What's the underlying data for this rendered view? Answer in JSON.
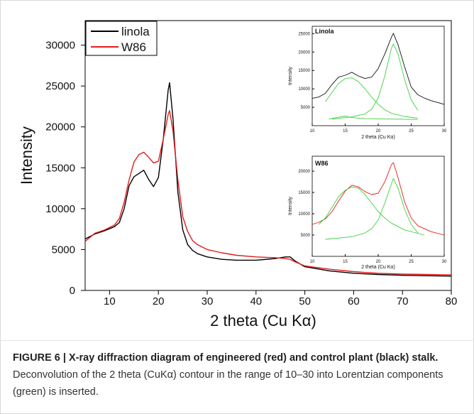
{
  "chart_data": [
    {
      "type": "line",
      "xlabel": "2 theta (Cu Kα)",
      "ylabel": "Intensity",
      "xlim": [
        5,
        80
      ],
      "ylim": [
        0,
        33000
      ],
      "xticks": [
        10,
        20,
        30,
        40,
        50,
        60,
        70,
        80
      ],
      "yticks": [
        0,
        5000,
        10000,
        15000,
        20000,
        25000,
        30000
      ],
      "legend_position": "top-left",
      "grid": false,
      "series": [
        {
          "name": "linola",
          "color": "#000000",
          "points": [
            [
              5,
              6300
            ],
            [
              7,
              6900
            ],
            [
              9,
              7300
            ],
            [
              11,
              7800
            ],
            [
              12,
              8300
            ],
            [
              13,
              10000
            ],
            [
              14,
              12800
            ],
            [
              15,
              13900
            ],
            [
              16,
              14300
            ],
            [
              17,
              14700
            ],
            [
              18,
              13600
            ],
            [
              19,
              12700
            ],
            [
              20,
              13800
            ],
            [
              21,
              18500
            ],
            [
              22,
              24500
            ],
            [
              22.3,
              25400
            ],
            [
              23,
              21000
            ],
            [
              24,
              12000
            ],
            [
              25,
              7400
            ],
            [
              26,
              5600
            ],
            [
              27,
              4900
            ],
            [
              28,
              4500
            ],
            [
              30,
              4100
            ],
            [
              33,
              3800
            ],
            [
              36,
              3700
            ],
            [
              40,
              3700
            ],
            [
              44,
              3900
            ],
            [
              46,
              4100
            ],
            [
              47,
              4100
            ],
            [
              48,
              3600
            ],
            [
              50,
              2900
            ],
            [
              55,
              2400
            ],
            [
              60,
              2100
            ],
            [
              65,
              1950
            ],
            [
              70,
              1850
            ],
            [
              75,
              1800
            ],
            [
              80,
              1750
            ]
          ]
        },
        {
          "name": "W86",
          "color": "#e41a1c",
          "points": [
            [
              5,
              6000
            ],
            [
              7,
              7000
            ],
            [
              9,
              7400
            ],
            [
              11,
              8000
            ],
            [
              12,
              8800
            ],
            [
              13,
              10800
            ],
            [
              14,
              13500
            ],
            [
              15,
              15700
            ],
            [
              16,
              16600
            ],
            [
              17,
              16900
            ],
            [
              18,
              16300
            ],
            [
              19,
              15600
            ],
            [
              20,
              15800
            ],
            [
              21,
              18500
            ],
            [
              22,
              21500
            ],
            [
              22.3,
              22000
            ],
            [
              23,
              19500
            ],
            [
              24,
              13500
            ],
            [
              25,
              9000
            ],
            [
              26,
              7200
            ],
            [
              27,
              6100
            ],
            [
              28,
              5600
            ],
            [
              30,
              5000
            ],
            [
              33,
              4600
            ],
            [
              36,
              4300
            ],
            [
              40,
              4100
            ],
            [
              44,
              4000
            ],
            [
              46,
              3900
            ],
            [
              47,
              3800
            ],
            [
              48,
              3500
            ],
            [
              50,
              3000
            ],
            [
              55,
              2600
            ],
            [
              60,
              2300
            ],
            [
              65,
              2100
            ],
            [
              70,
              2000
            ],
            [
              75,
              1950
            ],
            [
              80,
              1900
            ]
          ]
        }
      ]
    },
    {
      "type": "line",
      "title": "Linola",
      "xlabel": "2 theta (Cu Kα)",
      "ylabel": "Intensity",
      "xlim": [
        10,
        30
      ],
      "ylim": [
        0,
        27000
      ],
      "xticks": [
        10,
        15,
        20,
        25,
        30
      ],
      "yticks": [
        5000,
        10000,
        15000,
        20000,
        25000
      ],
      "series": [
        {
          "color": "#111111",
          "points": [
            [
              10,
              7400
            ],
            [
              11,
              7800
            ],
            [
              12,
              8800
            ],
            [
              13,
              11200
            ],
            [
              14,
              13200
            ],
            [
              15,
              13700
            ],
            [
              16,
              14500
            ],
            [
              17,
              13500
            ],
            [
              18,
              12800
            ],
            [
              19,
              13200
            ],
            [
              20,
              15500
            ],
            [
              21,
              19500
            ],
            [
              22,
              24000
            ],
            [
              22.3,
              25100
            ],
            [
              23,
              22000
            ],
            [
              24,
              16000
            ],
            [
              25,
              10500
            ],
            [
              26,
              8400
            ],
            [
              27,
              7500
            ],
            [
              28,
              6800
            ],
            [
              30,
              5800
            ]
          ]
        },
        {
          "color": "#3dd13d",
          "points": [
            [
              12,
              6500
            ],
            [
              13,
              9000
            ],
            [
              14,
              11500
            ],
            [
              15,
              12800
            ],
            [
              16,
              13000
            ],
            [
              17,
              12000
            ],
            [
              18,
              10000
            ],
            [
              19,
              7800
            ],
            [
              20,
              5800
            ],
            [
              21,
              4300
            ],
            [
              22,
              3400
            ],
            [
              24,
              2500
            ],
            [
              26,
              2000
            ]
          ]
        },
        {
          "color": "#3dd13d",
          "points": [
            [
              13,
              1800
            ],
            [
              16,
              2400
            ],
            [
              18,
              3200
            ],
            [
              19,
              4500
            ],
            [
              20,
              7500
            ],
            [
              21,
              13500
            ],
            [
              22,
              21000
            ],
            [
              22.3,
              22200
            ],
            [
              23,
              19500
            ],
            [
              24,
              12500
            ],
            [
              25,
              7000
            ],
            [
              26,
              4200
            ]
          ]
        },
        {
          "color": "#3dd13d",
          "points": [
            [
              12.5,
              1800
            ],
            [
              14,
              2300
            ],
            [
              15,
              2600
            ],
            [
              16,
              2200
            ],
            [
              18,
              1900
            ],
            [
              22,
              1800
            ],
            [
              26,
              1700
            ]
          ]
        }
      ]
    },
    {
      "type": "line",
      "title": "W86",
      "xlabel": "2 theta (Cu Kα)",
      "ylabel": "Intensity",
      "xlim": [
        10,
        30
      ],
      "ylim": [
        0,
        23500
      ],
      "xticks": [
        10,
        15,
        20,
        25,
        30
      ],
      "yticks": [
        5000,
        10000,
        15000,
        20000
      ],
      "series": [
        {
          "color": "#e41a1c",
          "points": [
            [
              10,
              7500
            ],
            [
              11,
              8000
            ],
            [
              12,
              8800
            ],
            [
              13,
              10500
            ],
            [
              14,
              13000
            ],
            [
              15,
              15300
            ],
            [
              16,
              16700
            ],
            [
              17,
              16300
            ],
            [
              18,
              15200
            ],
            [
              19,
              14500
            ],
            [
              20,
              14800
            ],
            [
              21,
              17500
            ],
            [
              22,
              21500
            ],
            [
              22.3,
              22000
            ],
            [
              23,
              18500
            ],
            [
              24,
              12800
            ],
            [
              25,
              9000
            ],
            [
              26,
              7200
            ],
            [
              28,
              5800
            ],
            [
              30,
              5000
            ]
          ]
        },
        {
          "color": "#3dd13d",
          "points": [
            [
              11,
              7500
            ],
            [
              12,
              9000
            ],
            [
              13,
              11500
            ],
            [
              14,
              14000
            ],
            [
              15,
              15500
            ],
            [
              16,
              16300
            ],
            [
              17,
              16000
            ],
            [
              18,
              14500
            ],
            [
              19,
              12500
            ],
            [
              20,
              10500
            ],
            [
              21,
              9000
            ],
            [
              22,
              7800
            ],
            [
              24,
              6200
            ],
            [
              27,
              5000
            ]
          ]
        },
        {
          "color": "#3dd13d",
          "points": [
            [
              12,
              4000
            ],
            [
              16,
              4600
            ],
            [
              18,
              5500
            ],
            [
              19,
              6500
            ],
            [
              20,
              8500
            ],
            [
              21,
              12500
            ],
            [
              22,
              17000
            ],
            [
              22.3,
              18300
            ],
            [
              23,
              16000
            ],
            [
              24,
              11000
            ],
            [
              25,
              7500
            ],
            [
              26,
              5500
            ]
          ]
        }
      ]
    }
  ],
  "caption": {
    "figure_label": "FIGURE 6 | X-ray diffraction diagram of engineered (red) and control plant (black) stalk.",
    "text": "Deconvolution of the 2 theta (CuKα) contour in the range of 10–30 into Lorentzian components (green) is inserted."
  }
}
